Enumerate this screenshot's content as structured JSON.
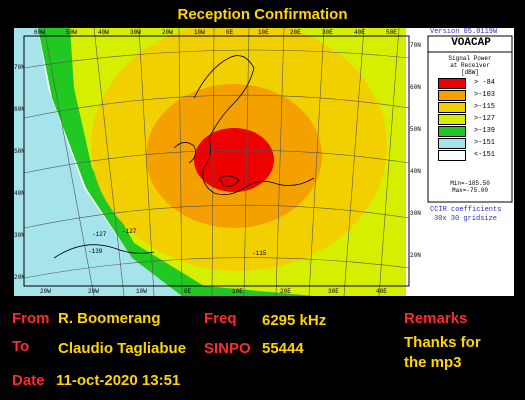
{
  "title": "Reception Confirmation",
  "map": {
    "version": "Version 05.0119W",
    "brand": "VOACAP",
    "legend_title": [
      "Signal Power",
      "at Receiver",
      "[dBW]"
    ],
    "legend_items": [
      {
        "color": "#ee0000",
        "label": "> -84"
      },
      {
        "color": "#f3a000",
        "label": ">-103"
      },
      {
        "color": "#f2d000",
        "label": ">-115"
      },
      {
        "color": "#d6ee00",
        "label": ">-127"
      },
      {
        "color": "#22c822",
        "label": ">-139"
      },
      {
        "color": "#a4e4ea",
        "label": ">-151"
      },
      {
        "color": "#ffffff",
        "label": "<-151"
      }
    ],
    "min_max": [
      "Min=-185.50",
      "Max=-75.00"
    ],
    "coefficients": [
      "CCIR coefficients",
      "30x 30 gridsize"
    ],
    "top_ticks": [
      "60W",
      "50W",
      "40W",
      "30W",
      "20W",
      "10W",
      "0E",
      "10E",
      "20E",
      "30E",
      "40E",
      "50E"
    ],
    "bottom_ticks": [
      "20W",
      "20W",
      "10W",
      "0E",
      "10E",
      "20E",
      "30E",
      "40E"
    ],
    "left_ticks": [
      "70N",
      "60N",
      "50N",
      "40N",
      "30N",
      "20N"
    ],
    "right_ticks": [
      "70N",
      "60N",
      "50N",
      "40N",
      "30N",
      "20N"
    ],
    "contour_labels": [
      "-127",
      "-127",
      "-115",
      "-139"
    ]
  },
  "fields": {
    "from_label": "From",
    "from_value": "R. Boomerang",
    "to_label": "To",
    "to_value": "Claudio Tagliabue",
    "date_label": "Date",
    "date_value": "11-oct-2020 13:51",
    "freq_label": "Freq",
    "freq_value": "6295 kHz",
    "sinpo_label": "SINPO",
    "sinpo_value": "55444",
    "remarks_label": "Remarks",
    "remarks_value_1": "Thanks for",
    "remarks_value_2": "the mp3"
  }
}
